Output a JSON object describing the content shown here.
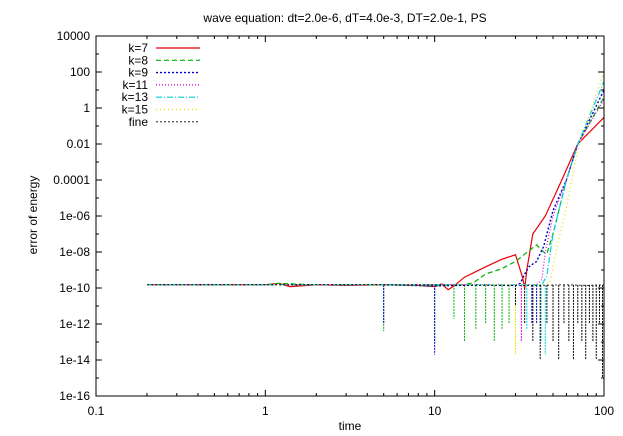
{
  "chart_data": {
    "type": "line",
    "title": "wave equation: dt=2.0e-6, dT=4.0e-3, DT=2.0e-1, PS",
    "xlabel": "time",
    "ylabel": "error of energy",
    "xscale": "log",
    "yscale": "log",
    "xlim": [
      0.1,
      100
    ],
    "ylim": [
      1e-16,
      10000
    ],
    "xticks": [
      0.1,
      1,
      10,
      100
    ],
    "xtick_labels": [
      "0.1",
      "1",
      "10",
      "100"
    ],
    "yticks": [
      1e-16,
      1e-14,
      1e-12,
      1e-10,
      1e-08,
      1e-06,
      0.0001,
      0.01,
      1,
      100,
      10000
    ],
    "ytick_labels": [
      "1e-16",
      "1e-14",
      "1e-12",
      "1e-10",
      "1e-08",
      "1e-06",
      "0.0001",
      "0.01",
      "1",
      "100",
      "10000"
    ],
    "grid": false,
    "legend_position": "top-left",
    "series": [
      {
        "name": "k=7",
        "color": "#e8000b",
        "dash": "",
        "width": 1.2,
        "points": [
          [
            0.2,
            1.5e-10
          ],
          [
            0.5,
            1.5e-10
          ],
          [
            1,
            1.5e-10
          ],
          [
            1.2,
            1.8e-10
          ],
          [
            1.4,
            1.2e-10
          ],
          [
            2,
            1.5e-10
          ],
          [
            3,
            1.4e-10
          ],
          [
            5,
            1.5e-10
          ],
          [
            8,
            1.4e-10
          ],
          [
            10,
            1.2e-10
          ],
          [
            11,
            1.7e-10
          ],
          [
            12,
            8e-11
          ],
          [
            13,
            1.3e-10
          ],
          [
            15,
            4e-10
          ],
          [
            20,
            1.5e-09
          ],
          [
            25,
            4e-09
          ],
          [
            30,
            7e-09
          ],
          [
            33,
            4e-10
          ],
          [
            34,
            1e-10
          ],
          [
            35,
            1e-09
          ],
          [
            38,
            1e-07
          ],
          [
            45,
            1e-06
          ],
          [
            55,
            6e-05
          ],
          [
            70,
            0.01
          ],
          [
            100,
            0.3
          ]
        ]
      },
      {
        "name": "k=8",
        "color": "#00b000",
        "dash": "5,3",
        "width": 1.2,
        "points": [
          [
            0.2,
            1.5e-10
          ],
          [
            1,
            1.5e-10
          ],
          [
            1.2,
            1.8e-10
          ],
          [
            2,
            1.5e-10
          ],
          [
            5,
            1.5e-10
          ],
          [
            10,
            1.3e-10
          ],
          [
            15,
            1.5e-10
          ],
          [
            17,
            2e-10
          ],
          [
            20,
            6e-10
          ],
          [
            25,
            1.2e-09
          ],
          [
            30,
            3e-09
          ],
          [
            40,
            2.5e-08
          ],
          [
            44,
            1e-08
          ],
          [
            46,
            8e-09
          ],
          [
            50,
            1e-07
          ],
          [
            60,
            0.0001
          ],
          [
            70,
            0.01
          ],
          [
            100,
            4
          ]
        ]
      },
      {
        "name": "k=9",
        "color": "#0000d0",
        "dash": "2,2",
        "width": 1.4,
        "points": [
          [
            0.2,
            1.5e-10
          ],
          [
            2,
            1.5e-10
          ],
          [
            5,
            1.5e-10
          ],
          [
            10,
            1.3e-10
          ],
          [
            20,
            1.5e-10
          ],
          [
            30,
            1.4e-10
          ],
          [
            32,
            1.8e-10
          ],
          [
            34,
            6e-10
          ],
          [
            36,
            1.5e-09
          ],
          [
            40,
            3e-09
          ],
          [
            44,
            2e-08
          ],
          [
            50,
            2e-06
          ],
          [
            60,
            0.0001
          ],
          [
            70,
            0.01
          ],
          [
            100,
            10
          ]
        ]
      },
      {
        "name": "k=11",
        "color": "#e000e0",
        "dash": "1,2",
        "width": 1.2,
        "points": [
          [
            0.2,
            1.5e-10
          ],
          [
            5,
            1.5e-10
          ],
          [
            20,
            1.5e-10
          ],
          [
            40,
            1.5e-10
          ],
          [
            43,
            3e-10
          ],
          [
            45,
            1e-08
          ],
          [
            50,
            1e-06
          ],
          [
            60,
            0.0001
          ],
          [
            70,
            0.01
          ],
          [
            100,
            3
          ]
        ]
      },
      {
        "name": "k=13",
        "color": "#00d0e0",
        "dash": "6,2,1,2",
        "width": 1.2,
        "points": [
          [
            0.2,
            1.5e-10
          ],
          [
            5,
            1.5e-10
          ],
          [
            20,
            1.5e-10
          ],
          [
            43,
            1.5e-10
          ],
          [
            46,
            5e-10
          ],
          [
            50,
            1e-07
          ],
          [
            60,
            0.0001
          ],
          [
            70,
            0.01
          ],
          [
            100,
            30
          ]
        ]
      },
      {
        "name": "k=15",
        "color": "#f0e000",
        "dash": "1,3",
        "width": 1.4,
        "points": [
          [
            0.2,
            1.5e-10
          ],
          [
            5,
            1.5e-10
          ],
          [
            20,
            1.5e-10
          ],
          [
            43,
            1.5e-10
          ],
          [
            48,
            2e-10
          ],
          [
            52,
            1e-08
          ],
          [
            60,
            3e-06
          ],
          [
            70,
            0.005
          ],
          [
            100,
            100
          ]
        ]
      },
      {
        "name": "fine",
        "color": "#000000",
        "dash": "2,2",
        "width": 0.8,
        "points": [
          [
            0.2,
            1.5e-10
          ],
          [
            1,
            1.5e-10
          ],
          [
            5,
            1.5e-10
          ],
          [
            10,
            1.5e-10
          ],
          [
            20,
            1.4e-10
          ],
          [
            40,
            1.4e-10
          ],
          [
            60,
            1.5e-10
          ],
          [
            80,
            1.4e-10
          ],
          [
            100,
            1.5e-10
          ]
        ]
      }
    ],
    "dips": [
      {
        "x": 5.0,
        "y": 4e-13,
        "color": "#00b000"
      },
      {
        "x": 5.0,
        "y": 1e-12,
        "color": "#0000d0"
      },
      {
        "x": 10.0,
        "y": 1e-13,
        "color": "#00b000"
      },
      {
        "x": 10.0,
        "y": 2e-14,
        "color": "#0000d0"
      },
      {
        "x": 13.0,
        "y": 2e-12,
        "color": "#00b000"
      },
      {
        "x": 15.0,
        "y": 1e-13,
        "color": "#00b000"
      },
      {
        "x": 17.5,
        "y": 5e-13,
        "color": "#00b000"
      },
      {
        "x": 20.0,
        "y": 1e-12,
        "color": "#00b000"
      },
      {
        "x": 22.5,
        "y": 1e-13,
        "color": "#00b000"
      },
      {
        "x": 25.0,
        "y": 5e-13,
        "color": "#00b000"
      },
      {
        "x": 27.5,
        "y": 1e-12,
        "color": "#00b000"
      },
      {
        "x": 30.0,
        "y": 2e-14,
        "color": "#f0e000"
      },
      {
        "x": 32.5,
        "y": 1e-13,
        "color": "#e000e0"
      },
      {
        "x": 35.0,
        "y": 5e-13,
        "color": "#00d0e0"
      },
      {
        "x": 37.5,
        "y": 1e-12,
        "color": "#0000d0"
      },
      {
        "x": 40.0,
        "y": 1e-12,
        "color": "#0000d0"
      },
      {
        "x": 42.5,
        "y": 1e-13,
        "color": "#00d0e0"
      },
      {
        "x": 45.0,
        "y": 2e-14,
        "color": "#00d0e0"
      },
      {
        "x": 30.0,
        "y": 1e-11,
        "color": "#000000"
      },
      {
        "x": 34.0,
        "y": 1e-12,
        "color": "#000000"
      },
      {
        "x": 38.0,
        "y": 1e-13,
        "color": "#000000"
      },
      {
        "x": 42.0,
        "y": 1e-14,
        "color": "#000000"
      },
      {
        "x": 46.0,
        "y": 1e-12,
        "color": "#000000"
      },
      {
        "x": 50.0,
        "y": 1e-13,
        "color": "#000000"
      },
      {
        "x": 54.0,
        "y": 1e-14,
        "color": "#000000"
      },
      {
        "x": 58.0,
        "y": 1e-12,
        "color": "#000000"
      },
      {
        "x": 62.0,
        "y": 1e-13,
        "color": "#000000"
      },
      {
        "x": 66.0,
        "y": 1e-14,
        "color": "#000000"
      },
      {
        "x": 70.0,
        "y": 1e-12,
        "color": "#000000"
      },
      {
        "x": 74.0,
        "y": 1e-13,
        "color": "#000000"
      },
      {
        "x": 78.0,
        "y": 1e-14,
        "color": "#000000"
      },
      {
        "x": 82.0,
        "y": 1e-12,
        "color": "#000000"
      },
      {
        "x": 86.0,
        "y": 1e-13,
        "color": "#000000"
      },
      {
        "x": 90.0,
        "y": 1e-14,
        "color": "#000000"
      },
      {
        "x": 94.0,
        "y": 1e-12,
        "color": "#000000"
      },
      {
        "x": 98.0,
        "y": 1e-15,
        "color": "#000000"
      }
    ]
  }
}
